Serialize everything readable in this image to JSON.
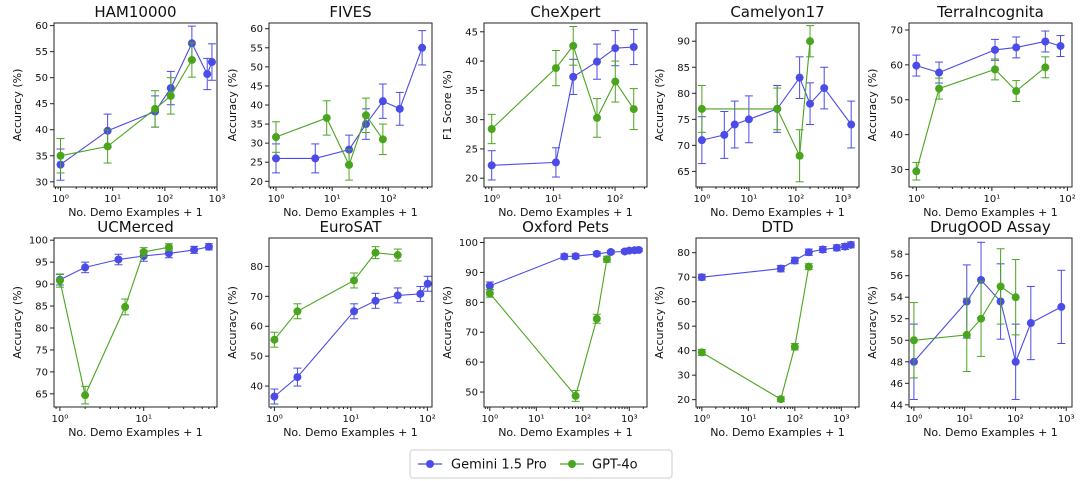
{
  "colors": {
    "gemini": "#4b4be8",
    "gpt": "#4aa51e"
  },
  "legend": [
    {
      "name": "Gemini 1.5 Pro",
      "color": "#4b4be8"
    },
    {
      "name": "GPT-4o",
      "color": "#4aa51e"
    }
  ],
  "chart_data": [
    {
      "type": "line",
      "title": "HAM10000",
      "xlabel": "No. Demo Examples + 1",
      "ylabel": "Accuracy (%)",
      "xscale": "log",
      "xlim": [
        0.75,
        1000
      ],
      "ylim": [
        29,
        60.5
      ],
      "xticks": [
        1,
        10,
        100,
        1000
      ],
      "xticklabels": [
        "10⁰",
        "10¹",
        "10²",
        "10³"
      ],
      "yticks": [
        30,
        35,
        40,
        45,
        50,
        55,
        60
      ],
      "series": [
        {
          "name": "Gemini 1.5 Pro",
          "color": "#4b4be8",
          "x": [
            1,
            8,
            65,
            130,
            330,
            650,
            800
          ],
          "y": [
            33.3,
            39.8,
            43.5,
            48,
            56.6,
            50.7,
            53
          ],
          "err": [
            3,
            3.2,
            3,
            3.2,
            3.3,
            3,
            3.5
          ]
        },
        {
          "name": "GPT-4o",
          "color": "#4aa51e",
          "x": [
            1,
            8,
            65,
            130,
            330
          ],
          "y": [
            35,
            36.8,
            44,
            46.5,
            53.4
          ],
          "err": [
            3.3,
            3.2,
            3.5,
            3.5,
            3.3
          ]
        }
      ]
    },
    {
      "type": "line",
      "title": "FIVES",
      "xlabel": "No. Demo Examples + 1",
      "ylabel": "Accuracy (%)",
      "xscale": "log",
      "xlim": [
        0.75,
        600
      ],
      "ylim": [
        18.5,
        61.5
      ],
      "xticks": [
        1,
        10,
        100
      ],
      "xticklabels": [
        "10⁰",
        "10¹",
        "10²"
      ],
      "yticks": [
        20,
        25,
        30,
        35,
        40,
        45,
        50,
        55,
        60
      ],
      "series": [
        {
          "name": "Gemini 1.5 Pro",
          "color": "#4b4be8",
          "x": [
            1,
            5,
            20,
            40,
            80,
            160,
            400
          ],
          "y": [
            26,
            26,
            28.3,
            35,
            41,
            39,
            55
          ],
          "err": [
            3.8,
            3.8,
            3.8,
            4,
            4.5,
            4.3,
            4.5
          ]
        },
        {
          "name": "GPT-4o",
          "color": "#4aa51e",
          "x": [
            1,
            8,
            20,
            40,
            80
          ],
          "y": [
            31.6,
            36.6,
            24.3,
            37.3,
            31
          ],
          "err": [
            4,
            4.5,
            4,
            4.5,
            4
          ]
        }
      ]
    },
    {
      "type": "line",
      "title": "CheXpert",
      "xlabel": "No. Demo Examples + 1",
      "ylabel": "F1 Score (%)",
      "xscale": "log",
      "xlim": [
        0.75,
        330
      ],
      "ylim": [
        18.5,
        46.5
      ],
      "xticks": [
        1,
        10,
        100
      ],
      "xticklabels": [
        "10⁰",
        "10¹",
        "10²"
      ],
      "yticks": [
        20,
        25,
        30,
        35,
        40,
        45
      ],
      "series": [
        {
          "name": "Gemini 1.5 Pro",
          "color": "#4b4be8",
          "x": [
            1,
            11,
            21,
            51,
            101,
            201
          ],
          "y": [
            22.2,
            22.7,
            37.3,
            39.9,
            42.2,
            42.4
          ],
          "err": [
            2.5,
            2.5,
            3,
            3,
            3,
            3
          ]
        },
        {
          "name": "GPT-4o",
          "color": "#4aa51e",
          "x": [
            1,
            11,
            21,
            51,
            101,
            201
          ],
          "y": [
            28.4,
            38.8,
            42.6,
            30.3,
            36.5,
            31.8
          ],
          "err": [
            2.5,
            3,
            3.3,
            3.3,
            3.5,
            3.5
          ]
        }
      ]
    },
    {
      "type": "line",
      "title": "Camelyon17",
      "xlabel": "No. Demo Examples + 1",
      "ylabel": "Accuracy (%)",
      "xscale": "log",
      "xlim": [
        0.75,
        2200
      ],
      "ylim": [
        62,
        93.5
      ],
      "xticks": [
        1,
        10,
        100,
        1000
      ],
      "xticklabels": [
        "10⁰",
        "10¹",
        "10²",
        "10³"
      ],
      "yticks": [
        65,
        70,
        75,
        80,
        85,
        90
      ],
      "series": [
        {
          "name": "Gemini 1.5 Pro",
          "color": "#4b4be8",
          "x": [
            1,
            3,
            5,
            10,
            40,
            120,
            200,
            400,
            1500
          ],
          "y": [
            71,
            72,
            74,
            75,
            77,
            83,
            78,
            81,
            74
          ],
          "err": [
            4.5,
            4.5,
            4.5,
            4.5,
            4.5,
            4,
            4,
            4,
            4.5
          ]
        },
        {
          "name": "GPT-4o",
          "color": "#4aa51e",
          "x": [
            1,
            40,
            120,
            200
          ],
          "y": [
            77,
            77,
            68,
            90
          ],
          "err": [
            4.5,
            4,
            5,
            3
          ]
        }
      ]
    },
    {
      "type": "line",
      "title": "TerraIncognita",
      "xlabel": "No. Demo Examples + 1",
      "ylabel": "Accuracy (%)",
      "xscale": "log",
      "xlim": [
        0.8,
        115
      ],
      "ylim": [
        25,
        72
      ],
      "xticks": [
        1,
        10,
        100
      ],
      "xticklabels": [
        "10⁰",
        "10¹",
        "10²"
      ],
      "yticks": [
        30,
        40,
        50,
        60,
        70
      ],
      "series": [
        {
          "name": "Gemini 1.5 Pro",
          "color": "#4b4be8",
          "x": [
            1,
            2,
            11,
            21,
            51,
            81
          ],
          "y": [
            59.8,
            57.8,
            64.3,
            65,
            66.7,
            65.4
          ],
          "err": [
            3,
            3,
            3,
            3,
            3,
            3
          ]
        },
        {
          "name": "GPT-4o",
          "color": "#4aa51e",
          "x": [
            1,
            2,
            11,
            21,
            51
          ],
          "y": [
            29.5,
            53.2,
            58.7,
            52.5,
            59.3
          ],
          "err": [
            2.5,
            3,
            3,
            3,
            3
          ]
        }
      ]
    },
    {
      "type": "line",
      "title": "UCMerced",
      "xlabel": "No. Demo Examples + 1",
      "ylabel": "Accuracy (%)",
      "xscale": "log",
      "xlim": [
        0.85,
        75
      ],
      "ylim": [
        62,
        100.5
      ],
      "xticks": [
        1,
        10
      ],
      "xticklabels": [
        "10⁰",
        "10¹"
      ],
      "yticks": [
        65,
        70,
        75,
        80,
        85,
        90,
        95,
        100
      ],
      "series": [
        {
          "name": "Gemini 1.5 Pro",
          "color": "#4b4be8",
          "x": [
            1,
            2,
            5,
            10,
            20,
            40,
            60
          ],
          "y": [
            91,
            93.8,
            95.6,
            96.4,
            97,
            97.8,
            98.5
          ],
          "err": [
            1.2,
            1.2,
            1.2,
            1.2,
            1,
            0.8,
            0.7
          ]
        },
        {
          "name": "GPT-4o",
          "color": "#4aa51e",
          "x": [
            1,
            2,
            6,
            10,
            20
          ],
          "y": [
            90.8,
            64.7,
            84.8,
            97.3,
            98.4
          ],
          "err": [
            1.5,
            2,
            1.8,
            1,
            0.8
          ]
        }
      ]
    },
    {
      "type": "line",
      "title": "EuroSAT",
      "xlabel": "No. Demo Examples + 1",
      "ylabel": "Accuracy (%)",
      "xscale": "log",
      "xlim": [
        0.85,
        115
      ],
      "ylim": [
        33,
        89.5
      ],
      "xticks": [
        1,
        10,
        100
      ],
      "xticklabels": [
        "10⁰",
        "10¹",
        "10²"
      ],
      "yticks": [
        40,
        50,
        60,
        70,
        80
      ],
      "series": [
        {
          "name": "Gemini 1.5 Pro",
          "color": "#4b4be8",
          "x": [
            1,
            2,
            11,
            21,
            41,
            81,
            101
          ],
          "y": [
            36.5,
            43,
            65,
            68.5,
            70.3,
            70.8,
            74.2
          ],
          "err": [
            2.5,
            3,
            2.5,
            2.5,
            2.5,
            2.5,
            2.5
          ]
        },
        {
          "name": "GPT-4o",
          "color": "#4aa51e",
          "x": [
            1,
            2,
            11,
            21,
            41
          ],
          "y": [
            55.5,
            65,
            75.3,
            84.6,
            83.8
          ],
          "err": [
            2.5,
            2.5,
            2.5,
            2,
            2
          ]
        }
      ]
    },
    {
      "type": "line",
      "title": "Oxford Pets",
      "xlabel": "No. Demo Examples + 1",
      "ylabel": "Accuracy (%)",
      "xscale": "log",
      "xlim": [
        0.75,
        2400
      ],
      "ylim": [
        45,
        101.5
      ],
      "xticks": [
        1,
        10,
        100,
        1000
      ],
      "xticklabels": [
        "10⁰",
        "10¹",
        "10²",
        "10³"
      ],
      "yticks": [
        50,
        60,
        70,
        80,
        90,
        100
      ],
      "series": [
        {
          "name": "Gemini 1.5 Pro",
          "color": "#4b4be8",
          "x": [
            1,
            40,
            70,
            200,
            400,
            800,
            1000,
            1300,
            1600
          ],
          "y": [
            85.5,
            95.3,
            95.4,
            96.2,
            96.8,
            97,
            97.3,
            97.4,
            97.5
          ],
          "err": [
            1.3,
            0.9,
            0.8,
            0.7,
            0.6,
            0.6,
            0.5,
            0.5,
            0.5
          ]
        },
        {
          "name": "GPT-4o",
          "color": "#4aa51e",
          "x": [
            1,
            70,
            200,
            330
          ],
          "y": [
            83,
            48.7,
            74.5,
            94.4
          ],
          "err": [
            1.3,
            1.8,
            1.5,
            1
          ]
        }
      ]
    },
    {
      "type": "line",
      "title": "DTD",
      "xlabel": "No. Demo Examples + 1",
      "ylabel": "Accuracy (%)",
      "xscale": "log",
      "xlim": [
        0.75,
        2400
      ],
      "ylim": [
        17,
        86
      ],
      "xticks": [
        1,
        10,
        100,
        1000
      ],
      "xticklabels": [
        "10⁰",
        "10¹",
        "10²",
        "10³"
      ],
      "yticks": [
        20,
        30,
        40,
        50,
        60,
        70,
        80
      ],
      "series": [
        {
          "name": "Gemini 1.5 Pro",
          "color": "#4b4be8",
          "x": [
            1,
            50,
            100,
            200,
            400,
            800,
            1200,
            1600
          ],
          "y": [
            70,
            73.5,
            76.8,
            80.2,
            81.3,
            82,
            82.5,
            83.2
          ],
          "err": [
            1.2,
            1.3,
            1.3,
            1.3,
            1.2,
            1.2,
            1.2,
            1.2
          ]
        },
        {
          "name": "GPT-4o",
          "color": "#4aa51e",
          "x": [
            1,
            50,
            100,
            200
          ],
          "y": [
            39.3,
            20.2,
            41.6,
            74.3
          ],
          "err": [
            1.2,
            1,
            1.3,
            1.2
          ]
        }
      ]
    },
    {
      "type": "line",
      "title": "DrugOOD Assay",
      "xlabel": "No. Demo Examples + 1",
      "ylabel": "Accuracy (%)",
      "xscale": "log",
      "xlim": [
        0.8,
        1300
      ],
      "ylim": [
        43.8,
        59.5
      ],
      "xticks": [
        1,
        10,
        100,
        1000
      ],
      "xticklabels": [
        "10⁰",
        "10¹",
        "10²",
        "10³"
      ],
      "yticks": [
        44,
        46,
        48,
        50,
        52,
        54,
        56,
        58
      ],
      "series": [
        {
          "name": "Gemini 1.5 Pro",
          "color": "#4b4be8",
          "x": [
            1,
            11,
            21,
            51,
            101,
            201,
            801
          ],
          "y": [
            48,
            53.6,
            55.6,
            53.6,
            48,
            51.6,
            53.1
          ],
          "err": [
            3.5,
            3.4,
            3.5,
            3.5,
            3.5,
            3.4,
            3.4
          ]
        },
        {
          "name": "GPT-4o",
          "color": "#4aa51e",
          "x": [
            1,
            11,
            21,
            51,
            101
          ],
          "y": [
            50,
            50.5,
            52,
            55,
            54
          ],
          "err": [
            3.5,
            3.4,
            3.5,
            3.5,
            3.5
          ]
        }
      ]
    }
  ]
}
